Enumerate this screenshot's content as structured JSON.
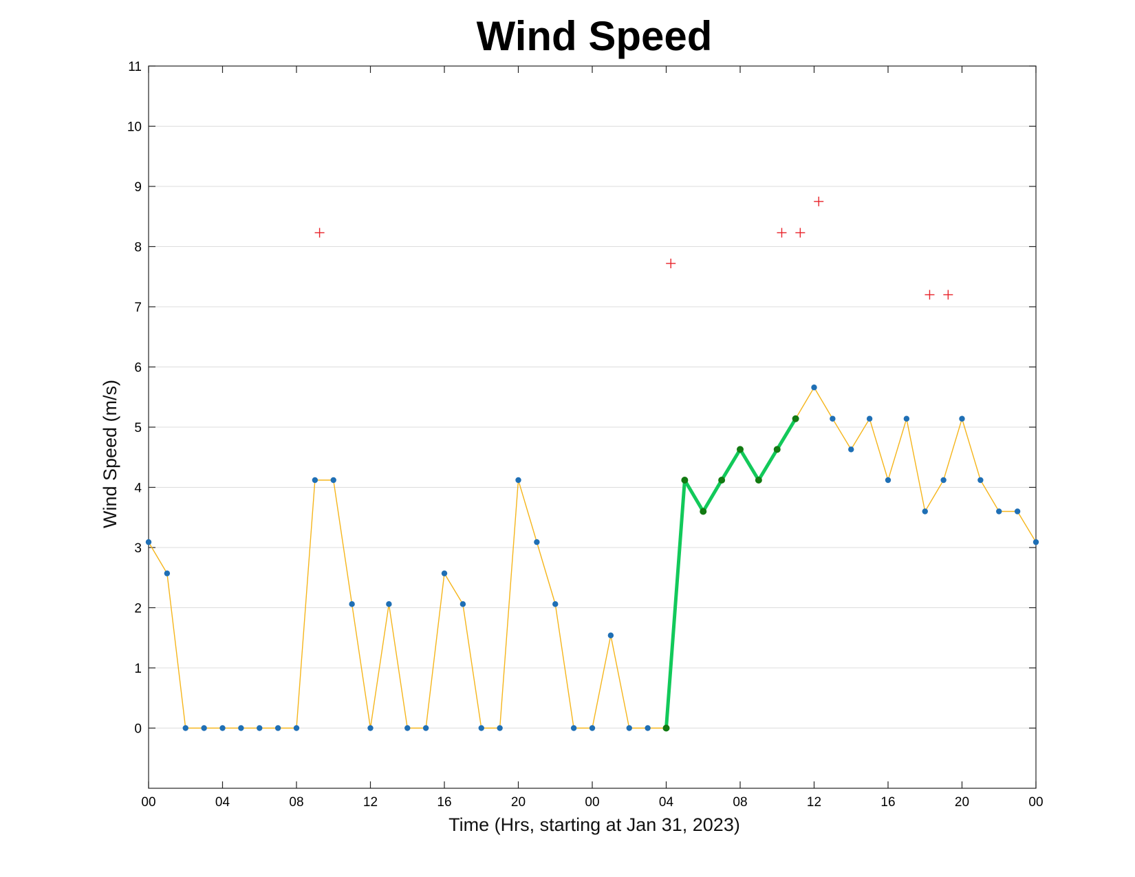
{
  "chart_data": {
    "type": "line",
    "title": "Wind Speed",
    "xlabel": "Time (Hrs, starting at Jan 31, 2023)",
    "ylabel": "Wind Speed (m/s)",
    "x_unit": "hours from start",
    "xlim": [
      0,
      48
    ],
    "ylim": [
      -1,
      11
    ],
    "grid": "horizontal",
    "x_ticks": [
      0,
      4,
      8,
      12,
      16,
      20,
      24,
      28,
      32,
      36,
      40,
      44,
      48
    ],
    "x_tick_labels": [
      "00",
      "04",
      "08",
      "12",
      "16",
      "20",
      "00",
      "04",
      "08",
      "12",
      "16",
      "20",
      "00"
    ],
    "y_ticks": [
      0,
      1,
      2,
      3,
      4,
      5,
      6,
      7,
      8,
      9,
      10,
      11
    ],
    "y_tick_labels": [
      "0",
      "1",
      "2",
      "3",
      "4",
      "5",
      "6",
      "7",
      "8",
      "9",
      "10",
      "11"
    ],
    "series": [
      {
        "style": "thin orange line with blue dot markers",
        "line_color": "#f5b51b",
        "marker_color": "#1f6fb5",
        "x": [
          0,
          1,
          2,
          3,
          4,
          5,
          6,
          7,
          8,
          9,
          10,
          11,
          12,
          13,
          14,
          15,
          16,
          17,
          18,
          19,
          20,
          21,
          22,
          23,
          24,
          25,
          26,
          27,
          28,
          29,
          30,
          31,
          32,
          33,
          34,
          35,
          36,
          37,
          38,
          39,
          40,
          41,
          42,
          43,
          44,
          45,
          46,
          47,
          48
        ],
        "y": [
          3.09,
          2.57,
          0,
          0,
          0,
          0,
          0,
          0,
          0,
          4.12,
          4.12,
          2.06,
          0,
          2.06,
          0,
          0,
          2.57,
          2.06,
          0,
          0,
          4.12,
          3.09,
          2.06,
          0,
          0,
          1.54,
          0,
          0,
          0,
          4.12,
          3.6,
          4.12,
          4.63,
          4.12,
          4.63,
          5.14,
          5.66,
          5.14,
          4.63,
          5.14,
          4.12,
          5.14,
          3.6,
          4.12,
          5.14,
          4.12,
          3.6,
          3.6,
          3.09
        ]
      },
      {
        "style": "thick green highlighted segment with dark green markers",
        "line_color": "#12c95a",
        "marker_color": "#127a12",
        "x": [
          28,
          29,
          30,
          31,
          32,
          33,
          34,
          35
        ],
        "y": [
          0,
          4.12,
          3.6,
          4.12,
          4.63,
          4.12,
          4.63,
          5.14
        ]
      },
      {
        "style": "red plus markers",
        "marker_color": "#e8232a",
        "x": [
          9.25,
          28.25,
          34.25,
          35.25,
          36.25,
          42.25,
          43.25
        ],
        "y": [
          8.23,
          7.72,
          8.23,
          8.23,
          8.75,
          7.2,
          7.2
        ]
      }
    ]
  }
}
